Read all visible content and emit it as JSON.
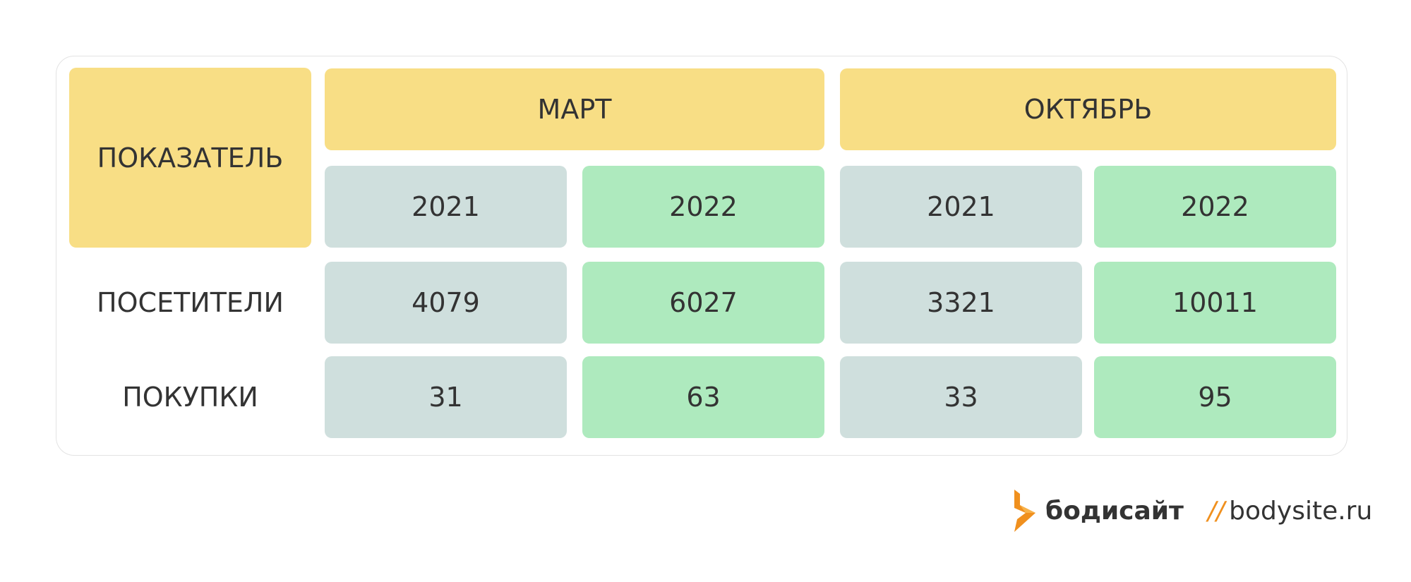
{
  "table": {
    "header": "ПОКАЗАТЕЛЬ",
    "groups": [
      {
        "label": "МАРТ",
        "years": [
          "2021",
          "2022"
        ]
      },
      {
        "label": "ОКТЯБРЬ",
        "years": [
          "2021",
          "2022"
        ]
      }
    ],
    "rows": [
      {
        "label": "ПОСЕТИТЕЛИ",
        "values": [
          4079,
          6027,
          3321,
          10011
        ]
      },
      {
        "label": "ПОКУПКИ",
        "values": [
          31,
          63,
          33,
          95
        ]
      }
    ]
  },
  "logo": {
    "brand": "бодисайт",
    "separator": "//",
    "site": "bodysite.ru"
  }
}
